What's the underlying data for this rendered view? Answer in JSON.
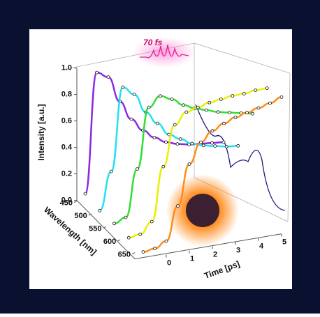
{
  "chart_data": {
    "type": "line3d",
    "annotation": "70 fs",
    "zlabel": "Intensity [a.u.]",
    "ylabel": "Wavelength [nm]",
    "xlabel": "Time [ps]",
    "x": [
      -1,
      -0.5,
      0,
      0.5,
      1,
      1.5,
      2,
      2.5,
      3,
      3.5,
      4,
      4.5,
      5
    ],
    "xlim": [
      -1,
      5
    ],
    "xticks": [
      0,
      1,
      2,
      3,
      4,
      5
    ],
    "ylim": [
      450,
      650
    ],
    "yticks": [
      450,
      500,
      550,
      600,
      650
    ],
    "zlim": [
      0,
      1
    ],
    "zticks": [
      {
        "value": 0,
        "label": "0.0"
      },
      {
        "value": 0.2,
        "label": "0.2"
      },
      {
        "value": 0.4,
        "label": "0.4"
      },
      {
        "value": 0.6,
        "label": "0.6"
      },
      {
        "value": 0.8,
        "label": "0.8"
      },
      {
        "value": 1,
        "label": "1.0"
      }
    ],
    "series": [
      {
        "color": "#8a2be2",
        "values": [
          0.05,
          0.95,
          0.9,
          0.7,
          0.55,
          0.45,
          0.38,
          0.33,
          0.3,
          0.28,
          0.27,
          0.26,
          0.25
        ]
      },
      {
        "color": "#22e0f0",
        "values": [
          0.02,
          0.3,
          0.92,
          0.85,
          0.7,
          0.6,
          0.5,
          0.45,
          0.4,
          0.37,
          0.35,
          0.33,
          0.32
        ]
      },
      {
        "color": "#33dd33",
        "values": [
          0.02,
          0.05,
          0.4,
          0.85,
          0.92,
          0.88,
          0.82,
          0.78,
          0.75,
          0.72,
          0.7,
          0.68,
          0.66
        ]
      },
      {
        "color": "#e8f000",
        "values": [
          0.01,
          0.02,
          0.1,
          0.5,
          0.8,
          0.88,
          0.9,
          0.92,
          0.93,
          0.94,
          0.94,
          0.95,
          0.95
        ]
      },
      {
        "color": "#ff8c1a",
        "values": [
          0,
          0.01,
          0.05,
          0.3,
          0.6,
          0.75,
          0.82,
          0.86,
          0.89,
          0.91,
          0.93,
          0.95,
          0.98
        ]
      }
    ]
  }
}
